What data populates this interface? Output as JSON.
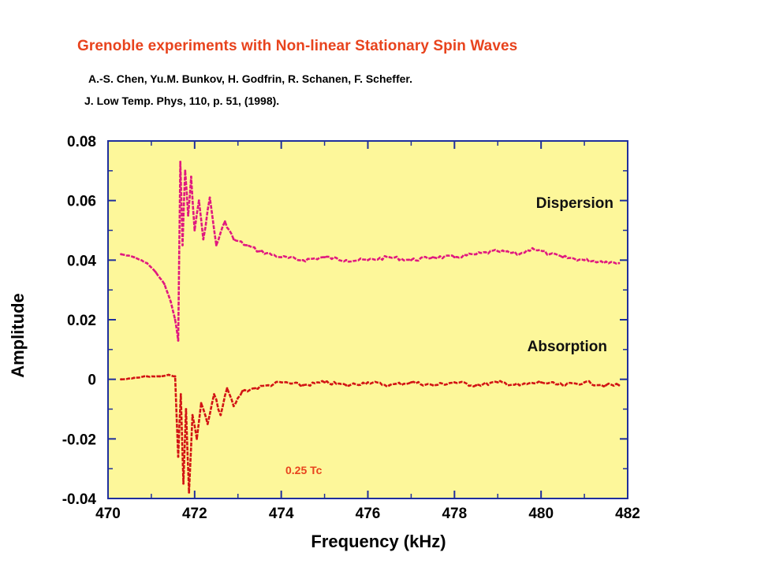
{
  "slide": {
    "title": "Grenoble experiments with Non-linear Stationary Spin Waves",
    "authors": "A.-S. Chen, Yu.M. Bunkov,  H. Godfrin, R. Schanen,  F. Scheffer.",
    "citation": "J. Low Temp. Phys, 110, p. 51, (1998)."
  },
  "colors": {
    "title": "#e8431d",
    "plot_background": "#fdf79a",
    "axis": "#1f2f9c",
    "dispersion": "#e0197f",
    "absorption": "#d21414",
    "annotation": "#e8431d"
  },
  "chart_data": {
    "type": "line",
    "title": "",
    "xlabel": "Frequency (kHz)",
    "ylabel": "Amplitude",
    "xlim": [
      470,
      482
    ],
    "ylim": [
      -0.04,
      0.08
    ],
    "x_ticks": [
      "470",
      "472",
      "474",
      "476",
      "478",
      "480",
      "482"
    ],
    "y_ticks": [
      "0.08",
      "0.06",
      "0.04",
      "0.02",
      "0",
      "-0.02",
      "-0.04"
    ],
    "grid": false,
    "annotations": [
      "0.25 Tc"
    ],
    "series": [
      {
        "name": "Dispersion",
        "x": [
          470.3,
          470.6,
          470.9,
          471.1,
          471.3,
          471.45,
          471.55,
          471.62,
          471.67,
          471.72,
          471.78,
          471.85,
          471.92,
          472.0,
          472.1,
          472.2,
          472.35,
          472.5,
          472.7,
          472.9,
          473.2,
          473.5,
          474.0,
          474.5,
          475.0,
          475.5,
          476.0,
          476.5,
          477.0,
          477.5,
          478.0,
          478.5,
          479.0,
          479.5,
          479.8,
          480.2,
          480.5,
          481.0,
          481.5,
          481.8
        ],
        "values": [
          0.042,
          0.041,
          0.039,
          0.036,
          0.032,
          0.026,
          0.02,
          0.013,
          0.073,
          0.045,
          0.07,
          0.055,
          0.068,
          0.05,
          0.06,
          0.047,
          0.061,
          0.045,
          0.053,
          0.047,
          0.045,
          0.043,
          0.041,
          0.04,
          0.041,
          0.04,
          0.04,
          0.041,
          0.04,
          0.041,
          0.041,
          0.042,
          0.043,
          0.042,
          0.044,
          0.042,
          0.041,
          0.04,
          0.0395,
          0.039
        ]
      },
      {
        "name": "Absorption",
        "x": [
          470.3,
          470.6,
          470.9,
          471.2,
          471.4,
          471.55,
          471.62,
          471.68,
          471.74,
          471.8,
          471.87,
          471.95,
          472.05,
          472.15,
          472.3,
          472.45,
          472.6,
          472.75,
          472.9,
          473.1,
          473.4,
          473.7,
          474.0,
          474.5,
          475.0,
          475.5,
          476.0,
          476.5,
          477.0,
          477.5,
          478.0,
          478.5,
          479.0,
          479.5,
          480.0,
          480.5,
          481.0,
          481.5,
          481.8
        ],
        "values": [
          0.0,
          0.0005,
          0.001,
          0.001,
          0.0015,
          0.001,
          -0.026,
          -0.005,
          -0.035,
          -0.01,
          -0.038,
          -0.012,
          -0.02,
          -0.008,
          -0.015,
          -0.005,
          -0.012,
          -0.003,
          -0.009,
          -0.004,
          -0.003,
          -0.002,
          -0.001,
          -0.002,
          -0.001,
          -0.002,
          -0.001,
          -0.002,
          -0.001,
          -0.002,
          -0.001,
          -0.002,
          -0.001,
          -0.002,
          -0.001,
          -0.002,
          -0.001,
          -0.002,
          -0.002
        ]
      }
    ]
  }
}
